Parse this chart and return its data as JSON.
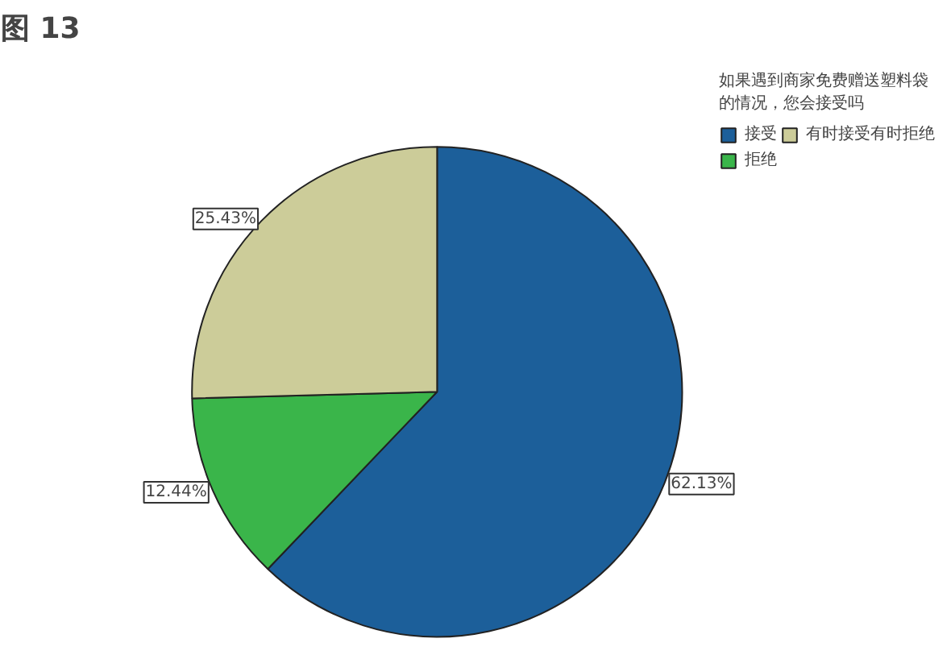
{
  "chart_data": {
    "type": "pie",
    "title": "图 13",
    "legend_title": "如果遇到商家免费赠送塑料袋的情况，您会接受吗",
    "categories": [
      "接受",
      "拒绝",
      "有时接受有时拒绝"
    ],
    "values": [
      62.13,
      12.44,
      25.43
    ],
    "colors": [
      "#1c5f9a",
      "#3ab54a",
      "#cccc99"
    ],
    "value_labels": [
      "62.13%",
      "12.44%",
      "25.43%"
    ],
    "legend": "top right"
  }
}
